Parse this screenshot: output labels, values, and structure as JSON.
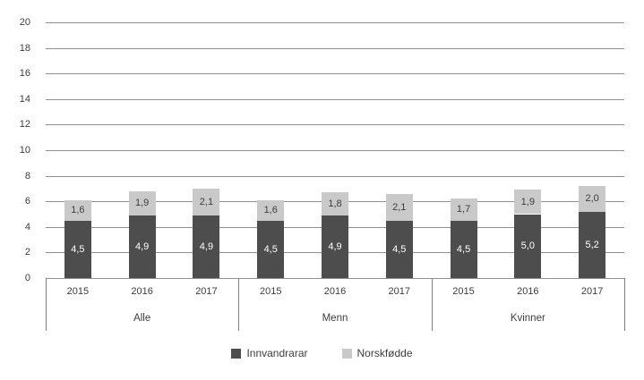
{
  "chart_data": {
    "type": "bar",
    "stacked": true,
    "title": "",
    "xlabel": "",
    "ylabel": "",
    "group_labels": [
      "Alle",
      "Menn",
      "Kvinner"
    ],
    "x_labels_per_group": [
      "2015",
      "2016",
      "2017"
    ],
    "series": [
      {
        "name": "Innvandrarar",
        "color": "#4d4d4d",
        "label_text_color": "#ffffff",
        "values": [
          [
            4.5,
            4.9,
            4.9
          ],
          [
            4.5,
            4.9,
            4.5
          ],
          [
            4.5,
            5.0,
            5.2
          ]
        ]
      },
      {
        "name": "Norskfødde",
        "color": "#c9c9c9",
        "label_text_color": "#3d3d3d",
        "values": [
          [
            1.6,
            1.9,
            2.1
          ],
          [
            1.6,
            1.8,
            2.1
          ],
          [
            1.7,
            1.9,
            2.0
          ]
        ]
      }
    ],
    "ylim": [
      0,
      20
    ],
    "ytick_step": 2,
    "ytick_labels": [
      "0",
      "2",
      "4",
      "6",
      "8",
      "10",
      "12",
      "14",
      "16",
      "18",
      "20"
    ],
    "decimal_separator": ",",
    "grid": true,
    "legend_position": "bottom"
  },
  "colors": {
    "background": "#ffffff",
    "gridline": "#909090",
    "axis_box_line": "#7d7d7d",
    "axis_text": "#3d3d3d"
  }
}
